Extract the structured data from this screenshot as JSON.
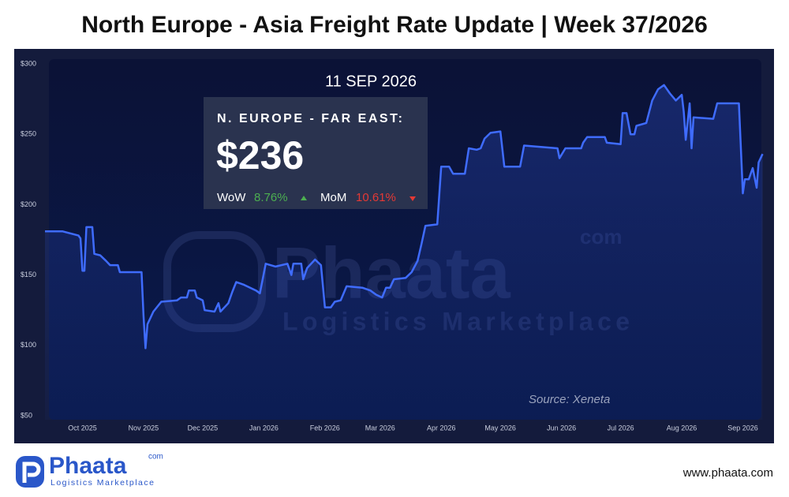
{
  "chart_data": {
    "type": "line",
    "title": "North Europe - Asia Freight Rate Update | Week 37/2026",
    "color": "#3f6cff",
    "x": [
      -19,
      -10,
      -2,
      -1,
      0,
      1,
      2,
      5,
      6,
      9,
      12,
      14,
      18,
      19,
      30,
      31,
      32,
      33,
      36,
      40,
      48,
      50,
      53,
      54,
      57,
      58,
      61,
      62,
      67,
      69,
      70,
      74,
      76,
      78,
      82,
      88,
      90,
      93,
      98,
      104,
      106,
      107,
      111,
      112,
      114,
      118,
      121,
      123,
      126,
      128,
      131,
      134,
      142,
      146,
      149,
      152,
      154,
      156,
      158,
      164,
      167,
      170,
      172,
      174,
      180,
      182,
      186,
      188,
      194,
      196,
      200,
      202,
      204,
      207,
      212,
      214,
      222,
      224,
      241,
      242,
      245,
      253,
      254,
      256,
      265,
      266,
      273,
      274,
      276,
      278,
      280,
      281,
      286,
      289,
      292,
      295,
      298,
      301,
      304,
      305,
      306,
      308,
      309,
      310,
      320,
      322,
      333,
      335,
      336,
      338,
      340,
      342,
      343,
      345
    ],
    "values": [
      181,
      181,
      178,
      176,
      153,
      153,
      184,
      184,
      165,
      164,
      160,
      157,
      157,
      152,
      152,
      121,
      98,
      115,
      124,
      131,
      132,
      134,
      134,
      139,
      139,
      134,
      132,
      125,
      124,
      130,
      124,
      130,
      138,
      145,
      143,
      139,
      137,
      158,
      156,
      158,
      150,
      158,
      158,
      147,
      155,
      161,
      157,
      127,
      127,
      131,
      132,
      142,
      141,
      139,
      136,
      134,
      141,
      141,
      147,
      148,
      152,
      160,
      172,
      185,
      186,
      227,
      227,
      222,
      222,
      240,
      239,
      240,
      247,
      251,
      252,
      227,
      227,
      242,
      240,
      233,
      240,
      240,
      244,
      248,
      248,
      244,
      243,
      265,
      265,
      250,
      250,
      256,
      258,
      274,
      282,
      285,
      279,
      274,
      278,
      266,
      246,
      272,
      240,
      262,
      261,
      272,
      272,
      208,
      218,
      218,
      226,
      212,
      230,
      236
    ],
    "xlim": [
      -19,
      345
    ],
    "xticks": [
      {
        "value": 0,
        "label": "Oct 2025"
      },
      {
        "value": 31,
        "label": "Nov 2025"
      },
      {
        "value": 61,
        "label": "Dec 2025"
      },
      {
        "value": 92,
        "label": "Jan 2026"
      },
      {
        "value": 123,
        "label": "Feb 2026"
      },
      {
        "value": 151,
        "label": "Mar 2026"
      },
      {
        "value": 182,
        "label": "Apr 2026"
      },
      {
        "value": 212,
        "label": "May 2026"
      },
      {
        "value": 243,
        "label": "Jun 2026"
      },
      {
        "value": 273,
        "label": "Jul 2026"
      },
      {
        "value": 304,
        "label": "Aug 2026"
      },
      {
        "value": 335,
        "label": "Sep 2026"
      }
    ],
    "ylim": [
      50,
      300
    ],
    "yticks": [
      {
        "value": 50,
        "label": "$50"
      },
      {
        "value": 100,
        "label": "$100"
      },
      {
        "value": 150,
        "label": "$150"
      },
      {
        "value": 200,
        "label": "$200"
      },
      {
        "value": 250,
        "label": "$250"
      },
      {
        "value": 300,
        "label": "$300"
      }
    ],
    "callout": {
      "date": "11 SEP 2026",
      "route": "N. EUROPE - FAR EAST:",
      "price": "$236",
      "wow_label": "WoW",
      "wow_value": "8.76%",
      "mom_label": "MoM",
      "mom_value": "10.61%"
    },
    "source": "Source: Xeneta"
  },
  "branding": {
    "logo": "Phaata",
    "logo_suffix": "com",
    "tagline": "Logistics Marketplace",
    "website": "www.phaata.com"
  }
}
